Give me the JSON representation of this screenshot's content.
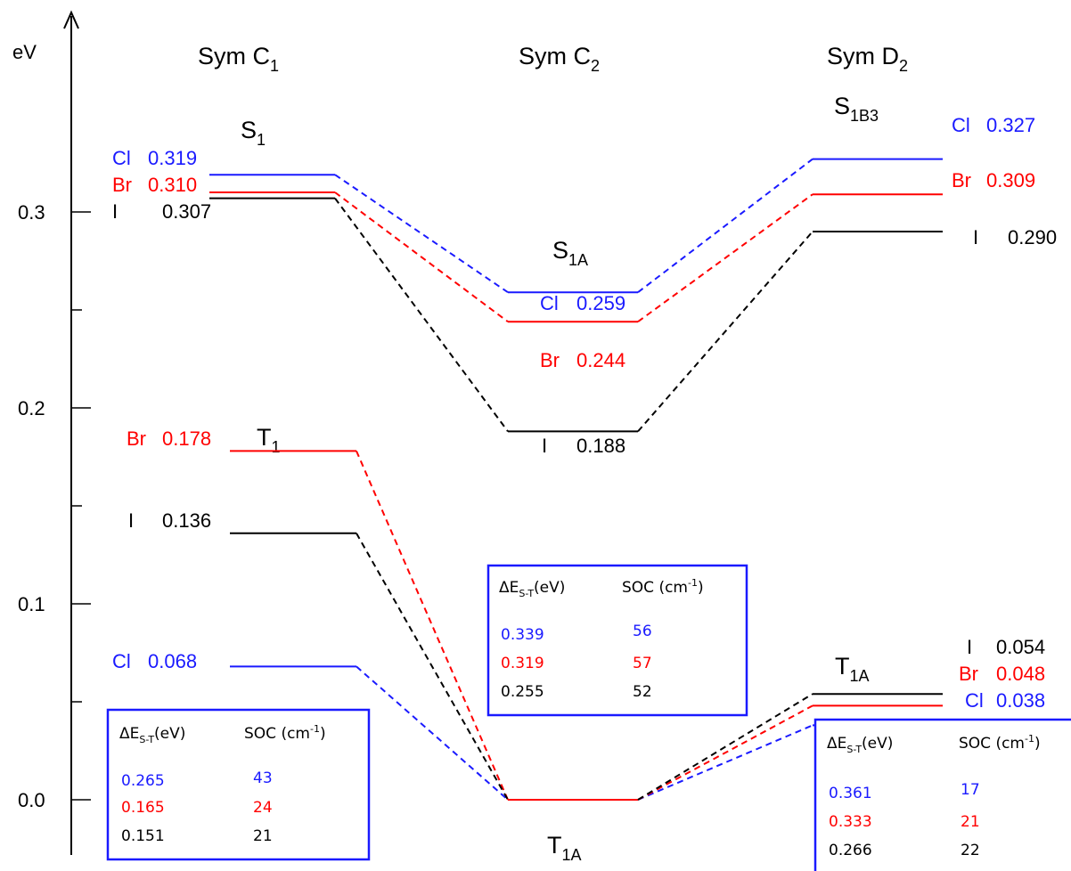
{
  "colors": {
    "Cl": "#1a1aff",
    "Br": "#ff0000",
    "I": "#000000",
    "box": "#1a1aff"
  },
  "axis": {
    "unit_label": "eV",
    "ticks": [
      {
        "value": 0.0,
        "label": "0.0"
      },
      {
        "value": 0.1,
        "label": "0.1"
      },
      {
        "value": 0.2,
        "label": "0.2"
      },
      {
        "value": 0.3,
        "label": "0.3"
      }
    ],
    "minor_ticks": [
      0.05,
      0.15,
      0.25
    ]
  },
  "columns": [
    {
      "key": "c1",
      "sym": "Sym C",
      "sub": "1"
    },
    {
      "key": "c2",
      "sym": "Sym C",
      "sub": "2"
    },
    {
      "key": "d2",
      "sym": "Sym D",
      "sub": "2"
    }
  ],
  "states": {
    "c1_S": {
      "main": "S",
      "sub": "1"
    },
    "c1_T": {
      "main": "T",
      "sub": "1"
    },
    "c2_S": {
      "main": "S",
      "sub": "1A"
    },
    "c2_T": {
      "main": "T",
      "sub": "1A"
    },
    "d2_S": {
      "main": "S",
      "sub": "1B3"
    },
    "d2_T": {
      "main": "T",
      "sub": "1A"
    }
  },
  "levels": {
    "c1_S": [
      {
        "halogen": "Cl",
        "name": "Cl",
        "value": "0.319",
        "energy": 0.319
      },
      {
        "halogen": "Br",
        "name": "Br",
        "value": "0.310",
        "energy": 0.31
      },
      {
        "halogen": "I",
        "name": "I",
        "value": "0.307",
        "energy": 0.307
      }
    ],
    "c1_T": [
      {
        "halogen": "Br",
        "name": "Br",
        "value": "0.178",
        "energy": 0.178
      },
      {
        "halogen": "I",
        "name": "I",
        "value": "0.136",
        "energy": 0.136
      },
      {
        "halogen": "Cl",
        "name": "Cl",
        "value": "0.068",
        "energy": 0.068
      }
    ],
    "c2_S": [
      {
        "halogen": "Cl",
        "name": "Cl",
        "value": "0.259",
        "energy": 0.259
      },
      {
        "halogen": "Br",
        "name": "Br",
        "value": "0.244",
        "energy": 0.244
      },
      {
        "halogen": "I",
        "name": "I",
        "value": "0.188",
        "energy": 0.188
      }
    ],
    "d2_S": [
      {
        "halogen": "Cl",
        "name": "Cl",
        "value": "0.327",
        "energy": 0.327
      },
      {
        "halogen": "Br",
        "name": "Br",
        "value": "0.309",
        "energy": 0.309
      },
      {
        "halogen": "I",
        "name": "I",
        "value": "0.290",
        "energy": 0.29
      }
    ],
    "d2_T": [
      {
        "halogen": "I",
        "name": "I",
        "value": "0.054",
        "energy": 0.054
      },
      {
        "halogen": "Br",
        "name": "Br",
        "value": "0.048",
        "energy": 0.048
      },
      {
        "halogen": "Cl",
        "name": "Cl",
        "value": "0.038",
        "energy": 0.038
      }
    ]
  },
  "tables": {
    "header_delta": "ΔE",
    "header_delta_sub": "S-T",
    "header_delta_unit": "(eV)",
    "header_soc": "SOC (cm",
    "header_soc_sup": "-1",
    "header_soc_close": ")",
    "c1": [
      {
        "halogen": "Cl",
        "dE": "0.265",
        "soc": "43"
      },
      {
        "halogen": "Br",
        "dE": "0.165",
        "soc": "24"
      },
      {
        "halogen": "I",
        "dE": "0.151",
        "soc": "21"
      }
    ],
    "c2": [
      {
        "halogen": "Cl",
        "dE": "0.339",
        "soc": "56"
      },
      {
        "halogen": "Br",
        "dE": "0.319",
        "soc": "57"
      },
      {
        "halogen": "I",
        "dE": "0.255",
        "soc": "52"
      }
    ],
    "d2": [
      {
        "halogen": "Cl",
        "dE": "0.361",
        "soc": "17"
      },
      {
        "halogen": "Br",
        "dE": "0.333",
        "soc": "21"
      },
      {
        "halogen": "I",
        "dE": "0.266",
        "soc": "22"
      }
    ]
  }
}
